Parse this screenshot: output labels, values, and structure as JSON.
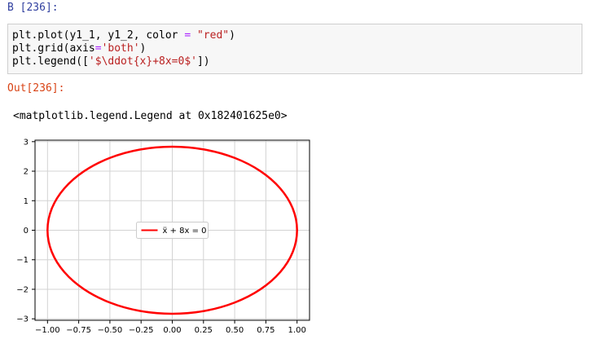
{
  "cell": {
    "in_prompt": "В [236]:",
    "code": {
      "line1": {
        "a": "plt.plot(y1_1, y1_2, color ",
        "eq": "=",
        "b": " ",
        "str": "\"red\"",
        "c": ")"
      },
      "line2": {
        "a": "plt.grid(axis",
        "eq": "=",
        "str": "'both'",
        "c": ")"
      },
      "line3": {
        "a": "plt.legend([",
        "str": "'$\\ddot{x}+8x=0$'",
        "c": "])"
      }
    },
    "out_prompt": "Out[236]:",
    "output_text": "<matplotlib.legend.Legend at 0x182401625e0>"
  },
  "colors": {
    "line": "#ff0000",
    "grid": "#d3d3d3",
    "in_prompt": "#303f9f",
    "out_prompt": "#d84315"
  },
  "chart_data": {
    "type": "line",
    "title": "",
    "xlabel": "",
    "ylabel": "",
    "xlim": [
      -1.1,
      1.1
    ],
    "ylim": [
      -3.05,
      3.05
    ],
    "xticks": [
      -1.0,
      -0.75,
      -0.5,
      -0.25,
      0.0,
      0.25,
      0.5,
      0.75,
      1.0
    ],
    "xtick_labels": [
      "−1.00",
      "−0.75",
      "−0.50",
      "−0.25",
      "0.00",
      "0.25",
      "0.50",
      "0.75",
      "1.00"
    ],
    "yticks": [
      -3,
      -2,
      -1,
      0,
      1,
      2,
      3
    ],
    "ytick_labels": [
      "−3",
      "−2",
      "−1",
      "0",
      "1",
      "2",
      "3"
    ],
    "grid": true,
    "legend": {
      "placement": "center",
      "entries": [
        "ẍ + 8x = 0"
      ]
    },
    "series": [
      {
        "name": "ẍ + 8x = 0",
        "color": "#ff0000",
        "x": [
          1.0,
          0.966,
          0.866,
          0.707,
          0.5,
          0.259,
          0.0,
          -0.259,
          -0.5,
          -0.707,
          -0.866,
          -0.966,
          -1.0,
          -0.966,
          -0.866,
          -0.707,
          -0.5,
          -0.259,
          0.0,
          0.259,
          0.5,
          0.707,
          0.866,
          0.966,
          1.0
        ],
        "y": [
          0.0,
          -0.732,
          -1.414,
          -2.0,
          -2.449,
          -2.732,
          -2.828,
          -2.732,
          -2.449,
          -2.0,
          -1.414,
          -0.732,
          0.0,
          0.732,
          1.414,
          2.0,
          2.449,
          2.732,
          2.828,
          2.732,
          2.449,
          2.0,
          1.414,
          0.732,
          0.0
        ]
      }
    ]
  }
}
